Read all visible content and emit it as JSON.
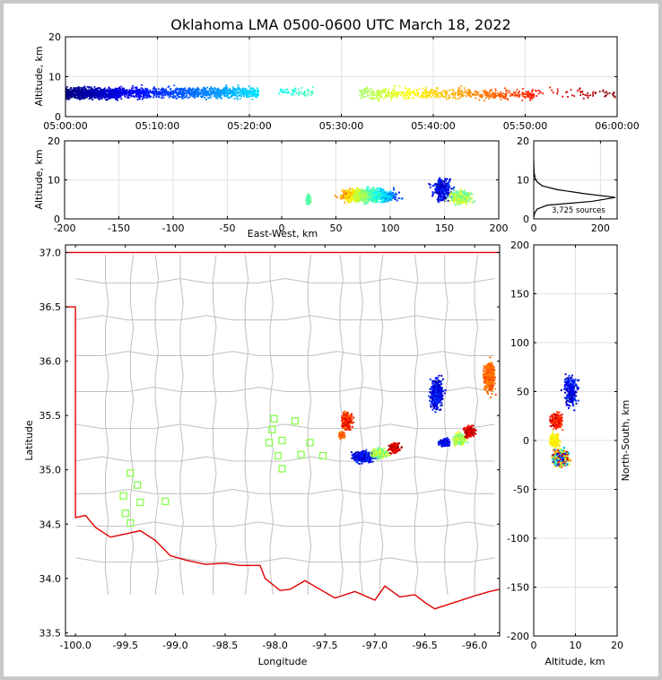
{
  "chart_data": [
    {
      "type": "scatter",
      "panel": "altitude-vs-time",
      "title": "Oklahoma LMA 0500-0600 UTC March 18, 2022",
      "xlabel": "",
      "ylabel": "Altitude, km",
      "xlim": [
        "05:00:00",
        "06:00:00"
      ],
      "ylim": [
        0,
        20
      ],
      "xticks": [
        "05:00:00",
        "05:10:00",
        "05:20:00",
        "05:30:00",
        "05:40:00",
        "05:50:00",
        "06:00:00"
      ],
      "yticks": [
        "0",
        "10",
        "20"
      ],
      "grid": true,
      "color_by": "time (jet colormap)",
      "clusters": [
        {
          "t_start_min": 0,
          "t_end_min": 6,
          "alt_center_km": 5.8,
          "alt_spread_km": 1.3,
          "density": "very dense"
        },
        {
          "t_start_min": 6,
          "t_end_min": 14,
          "alt_center_km": 6.0,
          "alt_spread_km": 1.3,
          "density": "dense"
        },
        {
          "t_start_min": 14,
          "t_end_min": 21,
          "alt_center_km": 6.0,
          "alt_spread_km": 1.3,
          "density": "dense"
        },
        {
          "t_start_min": 23,
          "t_end_min": 27,
          "alt_center_km": 6.2,
          "alt_spread_km": 1.0,
          "density": "sparse"
        },
        {
          "t_start_min": 32,
          "t_end_min": 38,
          "alt_center_km": 5.8,
          "alt_spread_km": 1.4,
          "density": "moderate"
        },
        {
          "t_start_min": 38,
          "t_end_min": 45,
          "alt_center_km": 5.8,
          "alt_spread_km": 1.3,
          "density": "moderate"
        },
        {
          "t_start_min": 45,
          "t_end_min": 51,
          "alt_center_km": 5.5,
          "alt_spread_km": 1.3,
          "density": "moderate"
        },
        {
          "t_start_min": 51,
          "t_end_min": 60,
          "alt_center_km": 5.8,
          "alt_spread_km": 1.2,
          "density": "sparse"
        }
      ]
    },
    {
      "type": "scatter",
      "panel": "altitude-vs-east-west",
      "xlabel": "East-West, km",
      "ylabel": "Altitude, km",
      "xlim": [
        -200,
        200
      ],
      "ylim": [
        0,
        20
      ],
      "xticks": [
        "-200",
        "-150",
        "-100",
        "-50",
        "0",
        "50",
        "100",
        "150",
        "200"
      ],
      "yticks": [
        "0",
        "10",
        "20"
      ],
      "grid": true,
      "clusters": [
        {
          "x_center_km": 80,
          "x_spread_km": 22,
          "alt_center_km": 6.0,
          "alt_spread_km": 1.5,
          "color": "mixed"
        },
        {
          "x_center_km": 148,
          "x_spread_km": 8,
          "alt_center_km": 7.5,
          "alt_spread_km": 2.5,
          "color": "blue"
        },
        {
          "x_center_km": 165,
          "x_spread_km": 10,
          "alt_center_km": 5.5,
          "alt_spread_km": 1.5,
          "color": "green-yellow"
        },
        {
          "x_center_km": 25,
          "x_spread_km": 2,
          "alt_center_km": 5.0,
          "alt_spread_km": 1.2,
          "color": "green"
        }
      ]
    },
    {
      "type": "line",
      "panel": "altitude-histogram",
      "annotation": "3,725 sources",
      "xlim": [
        0,
        250
      ],
      "ylim": [
        0,
        20
      ],
      "xticks": [
        "0",
        "200"
      ],
      "yticks": [
        "0",
        "10",
        "20"
      ],
      "grid": true,
      "profile": [
        {
          "alt_km": 0.5,
          "count": 0
        },
        {
          "alt_km": 1.5,
          "count": 3
        },
        {
          "alt_km": 2.5,
          "count": 10
        },
        {
          "alt_km": 3.5,
          "count": 40
        },
        {
          "alt_km": 4.5,
          "count": 175
        },
        {
          "alt_km": 5.5,
          "count": 245
        },
        {
          "alt_km": 6.5,
          "count": 150
        },
        {
          "alt_km": 7.5,
          "count": 70
        },
        {
          "alt_km": 8.5,
          "count": 25
        },
        {
          "alt_km": 9.5,
          "count": 10
        },
        {
          "alt_km": 10.5,
          "count": 4
        },
        {
          "alt_km": 12,
          "count": 1
        },
        {
          "alt_km": 15,
          "count": 0
        }
      ]
    },
    {
      "type": "scatter",
      "panel": "plan-view-map",
      "xlabel": "Longitude",
      "ylabel": "Latitude",
      "xlim": [
        -100.1,
        -95.75
      ],
      "ylim": [
        33.47,
        37.07
      ],
      "xticks": [
        "-100.0",
        "-99.5",
        "-99.0",
        "-98.5",
        "-98.0",
        "-97.5",
        "-97.0",
        "-96.5",
        "-96.0"
      ],
      "yticks": [
        "33.5",
        "34.0",
        "34.5",
        "35.0",
        "35.5",
        "36.0",
        "36.5",
        "37.0"
      ],
      "stations": [
        [
          -99.45,
          34.97
        ],
        [
          -99.38,
          34.86
        ],
        [
          -99.52,
          34.76
        ],
        [
          -99.35,
          34.7
        ],
        [
          -99.5,
          34.6
        ],
        [
          -99.45,
          34.51
        ],
        [
          -99.1,
          34.71
        ],
        [
          -98.01,
          35.47
        ],
        [
          -98.03,
          35.37
        ],
        [
          -98.06,
          35.25
        ],
        [
          -97.93,
          35.27
        ],
        [
          -97.97,
          35.13
        ],
        [
          -97.93,
          35.01
        ],
        [
          -97.8,
          35.45
        ],
        [
          -97.74,
          35.14
        ],
        [
          -97.65,
          35.25
        ],
        [
          -97.52,
          35.13
        ]
      ],
      "clusters": [
        {
          "lon": -97.12,
          "lat": 35.12,
          "slon": 0.1,
          "slat": 0.045,
          "color": "blue"
        },
        {
          "lon": -96.95,
          "lat": 35.15,
          "slon": 0.08,
          "slat": 0.04,
          "color": "green-yellow"
        },
        {
          "lon": -96.8,
          "lat": 35.2,
          "slon": 0.05,
          "slat": 0.04,
          "color": "red"
        },
        {
          "lon": -97.28,
          "lat": 35.45,
          "slon": 0.05,
          "slat": 0.07,
          "color": "orange-red"
        },
        {
          "lon": -97.33,
          "lat": 35.32,
          "slon": 0.03,
          "slat": 0.03,
          "color": "orange"
        },
        {
          "lon": -96.3,
          "lat": 35.25,
          "slon": 0.05,
          "slat": 0.03,
          "color": "blue"
        },
        {
          "lon": -96.15,
          "lat": 35.28,
          "slon": 0.06,
          "slat": 0.05,
          "color": "green-yellow"
        },
        {
          "lon": -96.38,
          "lat": 35.7,
          "slon": 0.06,
          "slat": 0.12,
          "color": "blue"
        },
        {
          "lon": -96.05,
          "lat": 35.35,
          "slon": 0.05,
          "slat": 0.05,
          "color": "red"
        },
        {
          "lon": -95.85,
          "lat": 35.85,
          "slon": 0.05,
          "slat": 0.12,
          "color": "orange"
        }
      ],
      "boundary_color": "#e00000",
      "county_color": "#c0c0c0",
      "station_color": "#7fff3f"
    },
    {
      "type": "scatter",
      "panel": "north-south-vs-altitude",
      "xlabel": "Altitude, km",
      "ylabel": "North-South, km",
      "xlim": [
        0,
        20
      ],
      "ylim": [
        -200,
        200
      ],
      "xticks": [
        "0",
        "10",
        "20"
      ],
      "yticks": [
        "-200",
        "-150",
        "-100",
        "-50",
        "0",
        "50",
        "100",
        "150",
        "200"
      ],
      "grid": true,
      "clusters": [
        {
          "alt_center_km": 6.5,
          "alt_spread_km": 1.6,
          "ns_center_km": -18,
          "ns_spread_km": 7,
          "color": "mixed"
        },
        {
          "alt_center_km": 5.5,
          "alt_spread_km": 1.3,
          "ns_center_km": 20,
          "ns_spread_km": 7,
          "color": "red-orange"
        },
        {
          "alt_center_km": 9.0,
          "alt_spread_km": 1.5,
          "ns_center_km": 50,
          "ns_spread_km": 15,
          "color": "blue"
        },
        {
          "alt_center_km": 5.0,
          "alt_spread_km": 1.0,
          "ns_center_km": 0,
          "ns_spread_km": 6,
          "color": "yellow"
        }
      ]
    }
  ]
}
